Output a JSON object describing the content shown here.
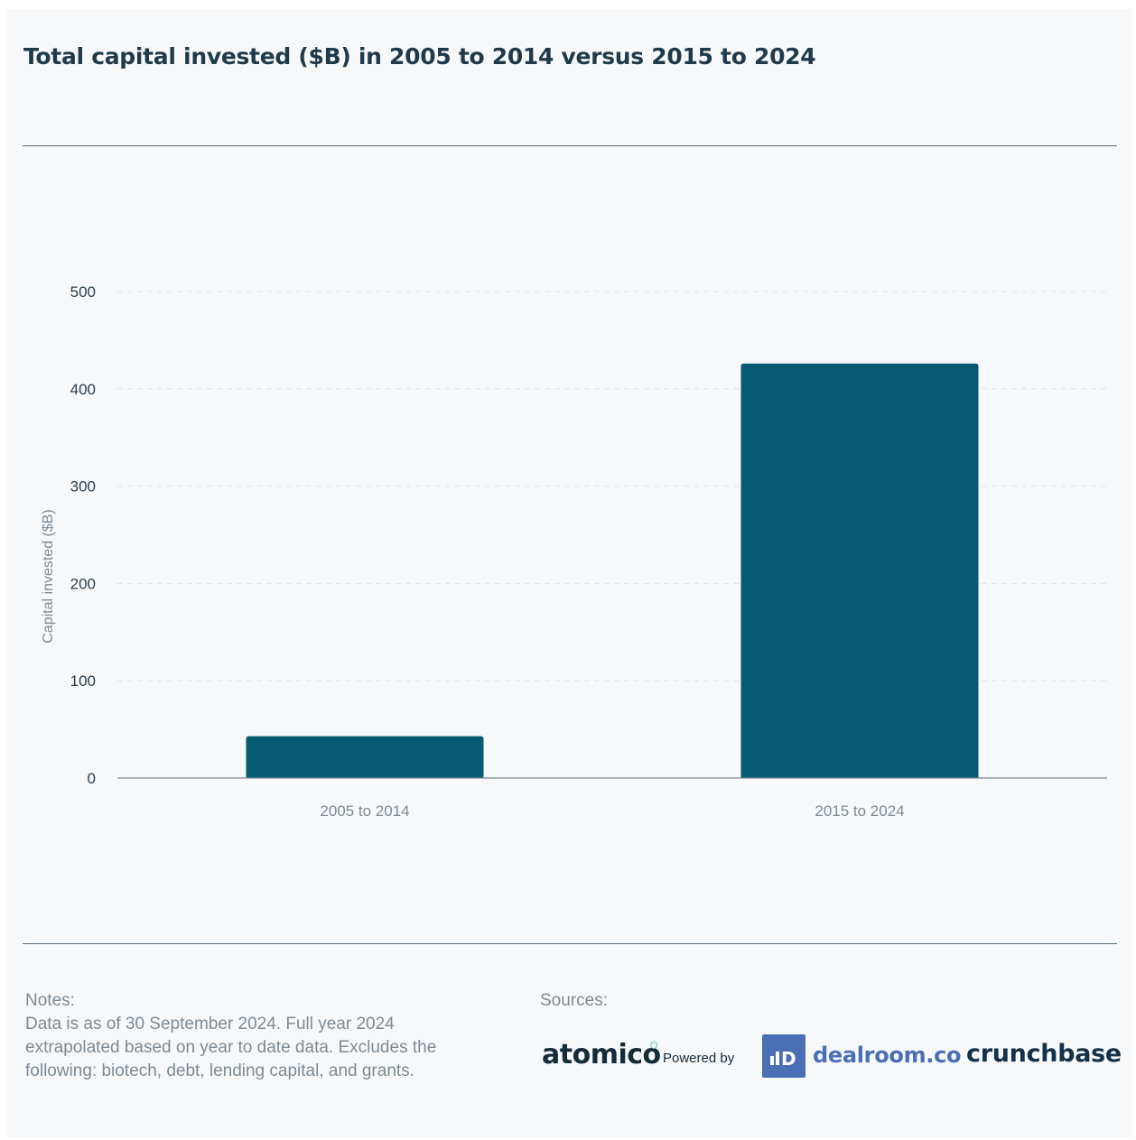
{
  "chart_data": {
    "type": "bar",
    "title": "Total capital invested ($B) in 2005 to 2014 versus 2015 to 2024",
    "xlabel": "",
    "ylabel": "Capital invested ($B)",
    "categories": [
      "2005 to 2014",
      "2015 to 2024"
    ],
    "values": [
      43,
      426
    ],
    "ylim": [
      0,
      500
    ],
    "yticks": [
      0,
      100,
      200,
      300,
      400,
      500
    ],
    "grid": true,
    "bar_color": "#065b72"
  },
  "notes": {
    "heading": "Notes:",
    "text": "Data is as of 30 September 2024. Full year 2024 extrapolated based on year to date data. Excludes the following: biotech, debt, lending capital, and grants."
  },
  "sources": {
    "heading": "Sources:",
    "atomico": "atomico",
    "powered_by": "Powered by",
    "dealroom_mark": "D",
    "dealroom": "dealroom.co",
    "crunchbase": "crunchbase"
  }
}
